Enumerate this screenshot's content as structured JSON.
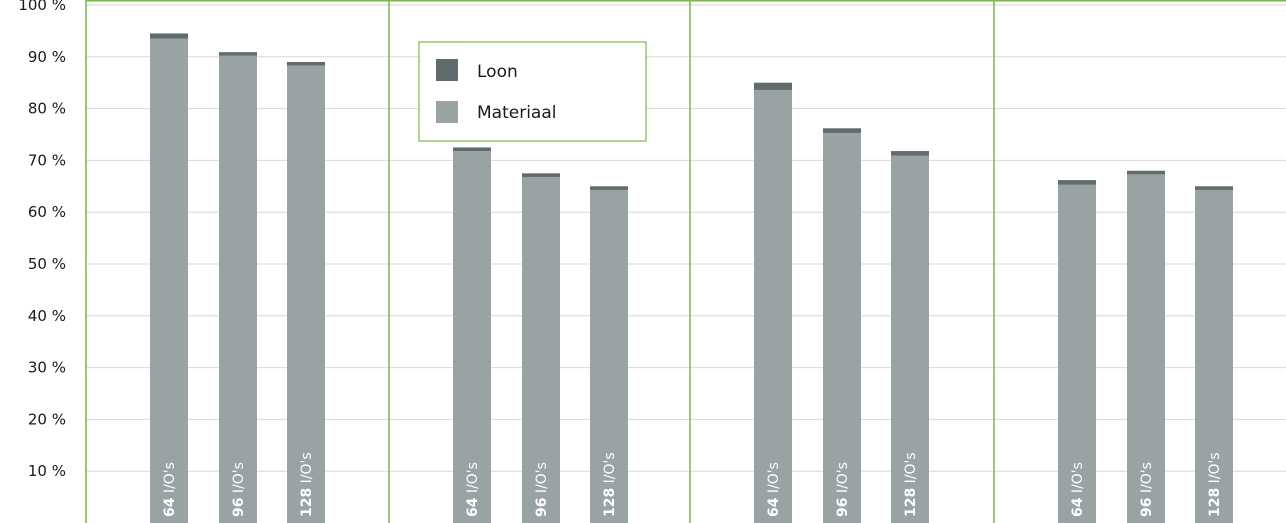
{
  "chart_data": {
    "type": "bar",
    "stacked": true,
    "y_unit": "%",
    "ylim": [
      0,
      100
    ],
    "y_ticks": [
      10,
      20,
      30,
      40,
      50,
      60,
      70,
      80,
      90,
      100
    ],
    "y_tick_labels": [
      "10 %",
      "20 %",
      "30 %",
      "40 %",
      "50 %",
      "60 %",
      "70 %",
      "80 %",
      "90 %",
      "100 %"
    ],
    "grid": true,
    "legend_position": "top-center",
    "legend": [
      {
        "name": "Loon",
        "color": "#5f6b6d"
      },
      {
        "name": "Materiaal",
        "color": "#99a3a4"
      }
    ],
    "series_colors": {
      "Loon": "#5f6b6d",
      "Materiaal": "#99a3a4"
    },
    "panel_border_color": "#7ab648",
    "groups": [
      {
        "bars": [
          {
            "label_num": "64",
            "label_unit": " I/O's",
            "materiaal": 93.5,
            "loon": 1.0
          },
          {
            "label_num": "96",
            "label_unit": " I/O's",
            "materiaal": 90.2,
            "loon": 0.7
          },
          {
            "label_num": "128",
            "label_unit": " I/O's",
            "materiaal": 88.3,
            "loon": 0.7
          }
        ]
      },
      {
        "bars": [
          {
            "label_num": "64",
            "label_unit": " I/O's",
            "materiaal": 71.8,
            "loon": 0.7
          },
          {
            "label_num": "96",
            "label_unit": " I/O's",
            "materiaal": 66.8,
            "loon": 0.7
          },
          {
            "label_num": "128",
            "label_unit": " I/O's",
            "materiaal": 64.3,
            "loon": 0.7
          }
        ]
      },
      {
        "bars": [
          {
            "label_num": "64",
            "label_unit": " I/O's",
            "materiaal": 83.6,
            "loon": 1.4
          },
          {
            "label_num": "96",
            "label_unit": " I/O's",
            "materiaal": 75.3,
            "loon": 0.9
          },
          {
            "label_num": "128",
            "label_unit": " I/O's",
            "materiaal": 70.9,
            "loon": 0.9
          }
        ]
      },
      {
        "bars": [
          {
            "label_num": "64",
            "label_unit": " I/O's",
            "materiaal": 65.3,
            "loon": 0.9
          },
          {
            "label_num": "96",
            "label_unit": " I/O's",
            "materiaal": 67.3,
            "loon": 0.7
          },
          {
            "label_num": "128",
            "label_unit": " I/O's",
            "materiaal": 64.3,
            "loon": 0.7
          }
        ]
      }
    ]
  }
}
